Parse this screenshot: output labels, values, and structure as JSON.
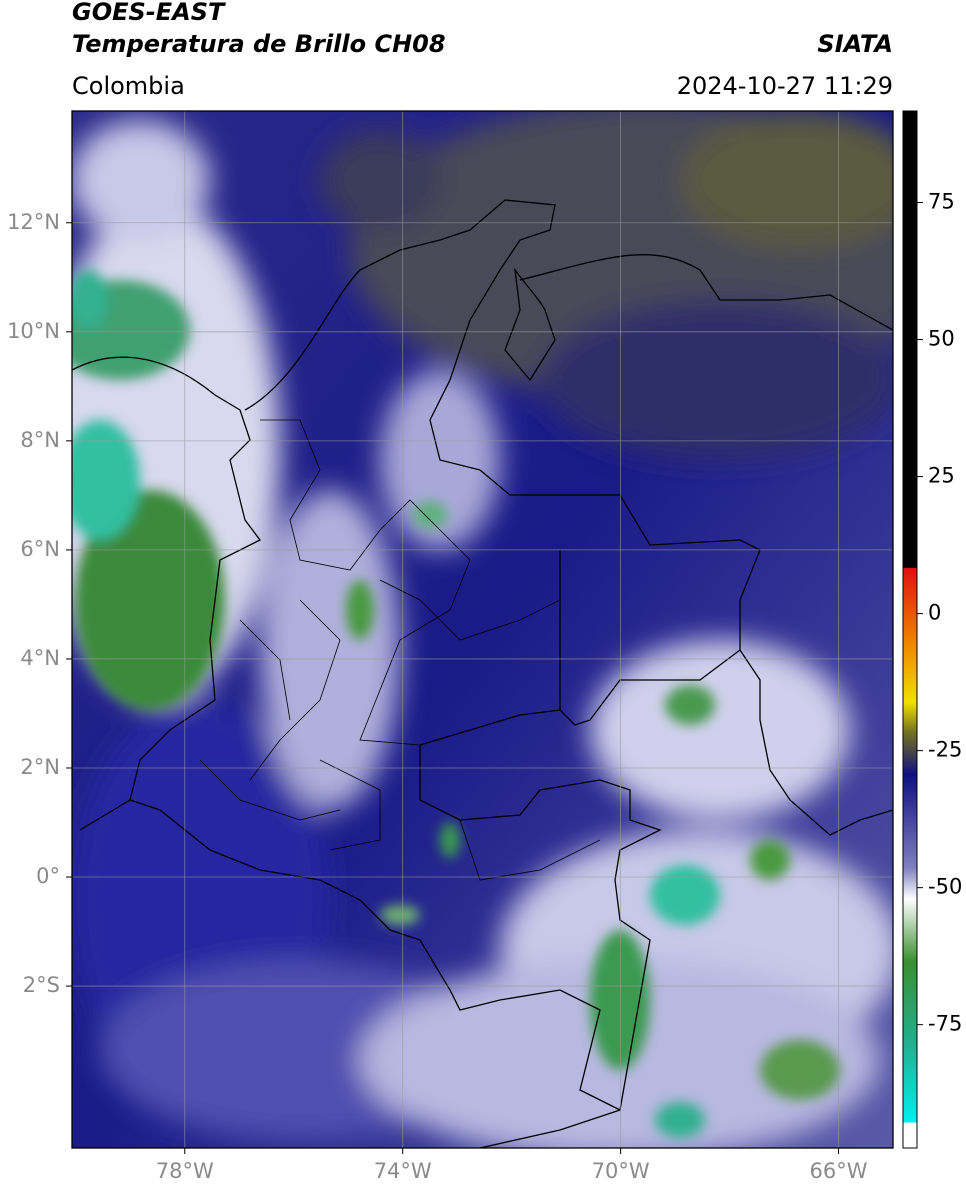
{
  "header": {
    "title": "GOES-EAST",
    "subtitle": "Temperatura de Brillo CH08",
    "source": "SIATA",
    "region": "Colombia",
    "timestamp": "2024-10-27 11:29"
  },
  "map": {
    "lon_range": [
      -80.07,
      -65.0
    ],
    "lat_range": [
      -4.97,
      14.05
    ],
    "lon_ticks": [
      {
        "value": -78,
        "label": "78°W"
      },
      {
        "value": -74,
        "label": "74°W"
      },
      {
        "value": -70,
        "label": "70°W"
      },
      {
        "value": -66,
        "label": "66°W"
      }
    ],
    "lat_ticks": [
      {
        "value": 12,
        "label": "12°N"
      },
      {
        "value": 10,
        "label": "10°N"
      },
      {
        "value": 8,
        "label": "8°N"
      },
      {
        "value": 6,
        "label": "6°N"
      },
      {
        "value": 4,
        "label": "4°N"
      },
      {
        "value": 2,
        "label": "2°N"
      },
      {
        "value": 0,
        "label": "0°"
      },
      {
        "value": -2,
        "label": "2°S"
      }
    ],
    "grid": true
  },
  "colorbar": {
    "range": [
      -97.5,
      91.7
    ],
    "ticks": [
      75,
      50,
      25,
      0,
      -25,
      -50,
      -75
    ]
  }
}
